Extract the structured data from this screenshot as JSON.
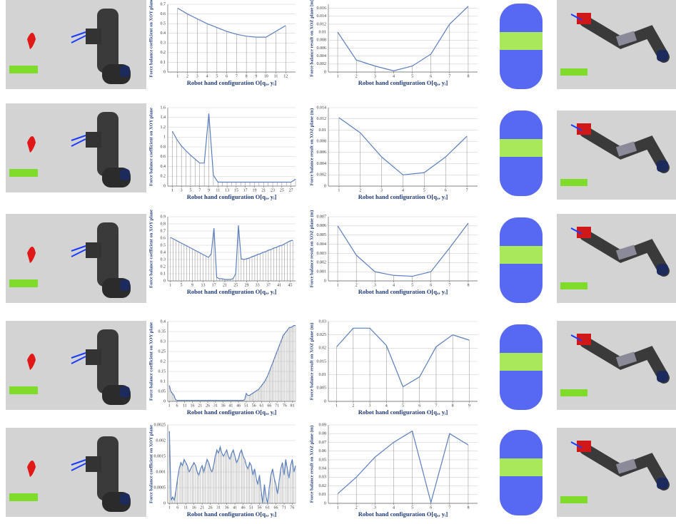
{
  "chart_data": [
    {
      "type": "line",
      "y_label": "Force balance coefficient on XOY plane",
      "x_label": "Robot hand configuration O[qₐ, yᵢ]",
      "color": "#5a7fbf",
      "grid": true,
      "x": [
        1,
        2,
        3,
        4,
        5,
        6,
        7,
        8,
        9,
        10,
        11,
        12
      ],
      "values": [
        0.66,
        0.6,
        0.55,
        0.5,
        0.46,
        0.42,
        0.39,
        0.37,
        0.36,
        0.36,
        0.42,
        0.48
      ],
      "xlim": [
        0,
        13
      ],
      "xticks": [
        1,
        2,
        3,
        4,
        5,
        6,
        7,
        8,
        9,
        10,
        11,
        12
      ],
      "ylim": [
        0,
        0.7
      ],
      "yticks": [
        0,
        0.1,
        0.2,
        0.3,
        0.4,
        0.5,
        0.6,
        0.7
      ]
    },
    {
      "type": "line",
      "y_label": "Force balance result on XOZ plane [m]",
      "x_label": "Robot hand configuration O[qₐ, yᵢ]",
      "color": "#5a7fbf",
      "grid": true,
      "x": [
        1,
        2,
        3,
        4,
        5,
        6,
        7,
        8
      ],
      "values": [
        0.01,
        0.003,
        0.0015,
        0.0003,
        0.0015,
        0.0045,
        0.012,
        0.0165
      ],
      "xlim": [
        0.5,
        8.5
      ],
      "xticks": [
        1,
        2,
        3,
        4,
        5,
        6,
        7,
        8
      ],
      "ylim": [
        0,
        0.017
      ],
      "yticks": [
        0,
        0.002,
        0.004,
        0.006,
        0.008,
        0.01,
        0.012,
        0.014,
        0.016
      ]
    },
    {
      "type": "line",
      "y_label": "Force balance coefficient on XOY plane",
      "x_label": "Robot hand configuration O[qₐ, yᵢ]",
      "color": "#5a7fbf",
      "grid": true,
      "x": [
        1,
        2,
        3,
        4,
        5,
        6,
        7,
        8,
        9,
        10,
        11,
        12,
        13,
        14,
        15,
        16,
        17,
        18,
        19,
        20,
        21,
        22,
        23,
        24,
        25,
        26,
        27,
        28
      ],
      "values": [
        1.12,
        0.95,
        0.82,
        0.72,
        0.63,
        0.55,
        0.47,
        0.47,
        1.48,
        0.22,
        0.08,
        0.08,
        0.08,
        0.08,
        0.08,
        0.08,
        0.08,
        0.08,
        0.08,
        0.08,
        0.08,
        0.08,
        0.08,
        0.08,
        0.08,
        0.08,
        0.08,
        0.14
      ],
      "xlim": [
        0,
        28
      ],
      "xticks": [
        1,
        3,
        5,
        7,
        9,
        11,
        13,
        15,
        17,
        19,
        21,
        23,
        25,
        27
      ],
      "ylim": [
        0,
        1.6
      ],
      "yticks": [
        0,
        0.2,
        0.4,
        0.6,
        0.8,
        1,
        1.2,
        1.4,
        1.6
      ]
    },
    {
      "type": "line",
      "y_label": "Force balance result on XOZ plane (m)",
      "x_label": "Robot hand configuration O[qₐ, yᵢ]",
      "color": "#5a7fbf",
      "grid": true,
      "x": [
        1,
        2,
        3,
        4,
        5,
        6,
        7
      ],
      "values": [
        0.0122,
        0.0095,
        0.0052,
        0.002,
        0.0024,
        0.0052,
        0.0089
      ],
      "xlim": [
        0.5,
        7.5
      ],
      "xticks": [
        1,
        2,
        3,
        4,
        5,
        6,
        7
      ],
      "ylim": [
        0,
        0.014
      ],
      "yticks": [
        0,
        0.002,
        0.004,
        0.006,
        0.008,
        0.01,
        0.012,
        0.014
      ]
    },
    {
      "type": "line",
      "y_label": "Force balance coefficient on XOY plane",
      "x_label": "Robot hand configuration O[qₐ, yᵢ]",
      "color": "#5a7fbf",
      "grid": true,
      "x": [
        1,
        2,
        3,
        4,
        5,
        6,
        7,
        8,
        9,
        10,
        11,
        12,
        13,
        14,
        15,
        16,
        17,
        18,
        19,
        20,
        21,
        22,
        23,
        24,
        25,
        26,
        27,
        28,
        29,
        30,
        31,
        32,
        33,
        34,
        35,
        36,
        37,
        38,
        39,
        40,
        41,
        42,
        43,
        44,
        45,
        46
      ],
      "values": [
        0.61,
        0.59,
        0.57,
        0.55,
        0.53,
        0.51,
        0.49,
        0.47,
        0.45,
        0.43,
        0.41,
        0.39,
        0.37,
        0.35,
        0.33,
        0.38,
        0.74,
        0.05,
        0.03,
        0.03,
        0.02,
        0.02,
        0.02,
        0.03,
        0.1,
        0.78,
        0.31,
        0.3,
        0.31,
        0.32,
        0.34,
        0.35,
        0.37,
        0.38,
        0.4,
        0.41,
        0.43,
        0.44,
        0.46,
        0.47,
        0.49,
        0.5,
        0.52,
        0.54,
        0.56,
        0.57
      ],
      "xlim": [
        0,
        47
      ],
      "xticks": [
        1,
        5,
        9,
        13,
        17,
        21,
        25,
        29,
        33,
        37,
        41,
        45
      ],
      "ylim": [
        0,
        0.9
      ],
      "yticks": [
        0,
        0.1,
        0.2,
        0.3,
        0.4,
        0.5,
        0.6,
        0.7,
        0.8,
        0.9
      ]
    },
    {
      "type": "line",
      "y_label": "Force balance result on XOZ plane (m)",
      "x_label": "Robot hand configuration O[qₐ, yᵢ]",
      "color": "#5a7fbf",
      "grid": true,
      "x": [
        1,
        2,
        3,
        4,
        5,
        6,
        7,
        8
      ],
      "values": [
        0.006,
        0.0028,
        0.001,
        0.0006,
        0.0005,
        0.001,
        0.0036,
        0.0063
      ],
      "xlim": [
        0.5,
        8.5
      ],
      "xticks": [
        1,
        2,
        3,
        4,
        5,
        6,
        7,
        8
      ],
      "ylim": [
        0,
        0.007
      ],
      "yticks": [
        0,
        0.001,
        0.002,
        0.003,
        0.004,
        0.005,
        0.006,
        0.007
      ]
    },
    {
      "type": "line",
      "y_label": "Force balance coefficient on XOY plane",
      "x_label": "Robot hand configuration O[qₐ, yᵢ]",
      "color": "#5a7fbf",
      "grid": true,
      "x": [
        1,
        2,
        3,
        4,
        5,
        6,
        7,
        8,
        9,
        10,
        11,
        12,
        13,
        14,
        15,
        16,
        17,
        18,
        19,
        20,
        21,
        22,
        23,
        24,
        25,
        26,
        27,
        28,
        29,
        30,
        31,
        32,
        33,
        34,
        35,
        36,
        37,
        38,
        39,
        40,
        41,
        42,
        43,
        44,
        45,
        46,
        47,
        48,
        49,
        50,
        51,
        52,
        53,
        54,
        55,
        56,
        57,
        58,
        59,
        60,
        61,
        62,
        63,
        64,
        65,
        66,
        67,
        68,
        69,
        70,
        71,
        72,
        73,
        74,
        75,
        76,
        77,
        78,
        79,
        80,
        81,
        82,
        83
      ],
      "values": [
        0.08,
        0.05,
        0.04,
        0.03,
        0.01,
        0.005,
        0.005,
        0.005,
        0.005,
        0.005,
        0.005,
        0.005,
        0.005,
        0.005,
        0.005,
        0.005,
        0.005,
        0.005,
        0.005,
        0.005,
        0.005,
        0.005,
        0.005,
        0.005,
        0.005,
        0.005,
        0.005,
        0.005,
        0.005,
        0.005,
        0.005,
        0.005,
        0.005,
        0.005,
        0.005,
        0.005,
        0.005,
        0.005,
        0.005,
        0.005,
        0.005,
        0.005,
        0.005,
        0.005,
        0.005,
        0.005,
        0.005,
        0.005,
        0.005,
        0.01,
        0.04,
        0.03,
        0.03,
        0.035,
        0.04,
        0.045,
        0.05,
        0.055,
        0.06,
        0.07,
        0.08,
        0.09,
        0.1,
        0.115,
        0.13,
        0.15,
        0.17,
        0.19,
        0.21,
        0.23,
        0.25,
        0.27,
        0.29,
        0.31,
        0.33,
        0.34,
        0.35,
        0.36,
        0.37,
        0.37,
        0.375,
        0.38,
        0.38
      ],
      "xlim": [
        0,
        83
      ],
      "xticks": [
        1,
        6,
        11,
        16,
        21,
        26,
        31,
        36,
        41,
        46,
        51,
        56,
        61,
        66,
        71,
        76,
        81
      ],
      "ylim": [
        0,
        0.4
      ],
      "yticks": [
        0,
        0.05,
        0.1,
        0.15,
        0.2,
        0.25,
        0.3,
        0.35,
        0.4
      ]
    },
    {
      "type": "line",
      "y_label": "Force balance result on XOZ plane (m)",
      "x_label": "Robot hand configuration O[qₐ, yᵢ]",
      "color": "#5a7fbf",
      "grid": true,
      "x": [
        1,
        2,
        3,
        4,
        5,
        6,
        7,
        8,
        9
      ],
      "values": [
        0.0205,
        0.0275,
        0.0275,
        0.021,
        0.0055,
        0.0092,
        0.0205,
        0.025,
        0.023
      ],
      "xlim": [
        0.5,
        9.5
      ],
      "xticks": [
        1,
        2,
        3,
        4,
        5,
        6,
        7,
        8,
        9
      ],
      "ylim": [
        0,
        0.03
      ],
      "yticks": [
        0,
        0.005,
        0.01,
        0.015,
        0.02,
        0.025,
        0.03
      ]
    },
    {
      "type": "line",
      "y_label": "Force balance coefficient on XOY plane",
      "x_label": "Robot hand configuration O[qₐ, yᵢ]",
      "color": "#5a7fbf",
      "grid": true,
      "x": [
        1,
        2,
        3,
        4,
        5,
        6,
        7,
        8,
        9,
        10,
        11,
        12,
        13,
        14,
        15,
        16,
        17,
        18,
        19,
        20,
        21,
        22,
        23,
        24,
        25,
        26,
        27,
        28,
        29,
        30,
        31,
        32,
        33,
        34,
        35,
        36,
        37,
        38,
        39,
        40,
        41,
        42,
        43,
        44,
        45,
        46,
        47,
        48,
        49,
        50,
        51,
        52,
        53,
        54,
        55,
        56,
        57,
        58,
        59,
        60,
        61,
        62,
        63,
        64,
        65,
        66,
        67,
        68,
        69,
        70,
        71,
        72,
        73,
        74,
        75,
        76,
        77,
        78
      ],
      "values": [
        0.0023,
        0.0001,
        0.0002,
        0.0001,
        0.0004,
        0.0008,
        0.0011,
        0.0013,
        0.0012,
        0.0014,
        0.0013,
        0.0012,
        0.001,
        0.0011,
        0.0012,
        0.0013,
        0.0012,
        0.001,
        0.0009,
        0.0011,
        0.0012,
        0.001,
        0.0012,
        0.0014,
        0.0013,
        0.0011,
        0.001,
        0.0012,
        0.0015,
        0.0017,
        0.0016,
        0.0018,
        0.0016,
        0.0015,
        0.0016,
        0.0017,
        0.0015,
        0.0014,
        0.0016,
        0.0017,
        0.0015,
        0.0013,
        0.0014,
        0.0016,
        0.0017,
        0.0015,
        0.0014,
        0.0012,
        0.0011,
        0.0013,
        0.0012,
        0.0009,
        0.0011,
        0.0008,
        0.0006,
        0.0009,
        0.0004,
        0,
        0.0006,
        0.0002,
        0,
        0.0005,
        0.0009,
        0.0011,
        0.0008,
        0.0006,
        0.0003,
        0.0007,
        0.0011,
        0.0013,
        0.0009,
        0.0014,
        0.0011,
        0.0008,
        0.0012,
        0.0014,
        0.001,
        0.0012
      ],
      "xlim": [
        0,
        78
      ],
      "xticks": [
        1,
        6,
        11,
        16,
        21,
        26,
        31,
        36,
        41,
        46,
        51,
        56,
        61,
        66,
        71,
        76
      ],
      "ylim": [
        0,
        0.0025
      ],
      "yticks": [
        0,
        0.0005,
        0.001,
        0.0015,
        0.002,
        0.0025
      ]
    },
    {
      "type": "line",
      "y_label": "Force balance result on XOZ plane (m)",
      "x_label": "Robot hand configuration O[qₐ, yᵢ]",
      "color": "#5a7fbf",
      "grid": true,
      "x": [
        1,
        2,
        3,
        4,
        5,
        6,
        7,
        8
      ],
      "values": [
        0.011,
        0.03,
        0.053,
        0.07,
        0.083,
        0.001,
        0.08,
        0.067
      ],
      "xlim": [
        0.5,
        8.5
      ],
      "xticks": [
        1,
        2,
        3,
        4,
        5,
        6,
        7,
        8
      ],
      "ylim": [
        0,
        0.09
      ],
      "yticks": [
        0,
        0.01,
        0.02,
        0.03,
        0.04,
        0.05,
        0.06,
        0.07,
        0.08,
        0.09
      ]
    }
  ]
}
